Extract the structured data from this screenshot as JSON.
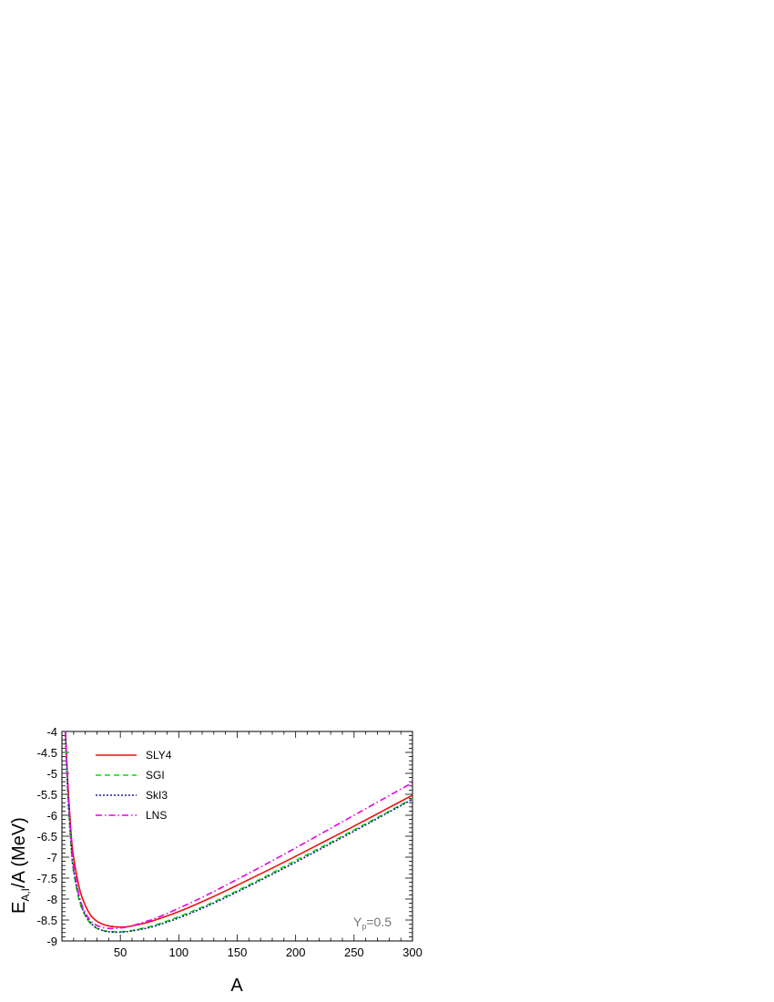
{
  "chart_data": {
    "type": "line",
    "xlabel": "A",
    "ylabel": {
      "main": "E",
      "sub": "A,I",
      "rest": "/A (MeV)"
    },
    "xlim": [
      0,
      300
    ],
    "ylim": [
      -9,
      -4
    ],
    "xticks": [
      50,
      100,
      150,
      200,
      250,
      300
    ],
    "yticks": [
      -4,
      -4.5,
      -5,
      -5.5,
      -6,
      -6.5,
      -7,
      -7.5,
      -8,
      -8.5,
      -9
    ],
    "legend_position": "top-left",
    "annotation": {
      "main": "Y",
      "sub": "p",
      "rest": "=0.5"
    },
    "series": [
      {
        "name": "SLY4",
        "color": "#ee1111",
        "dash": "",
        "x": [
          3,
          5,
          8,
          10,
          15,
          20,
          25,
          30,
          35,
          40,
          45,
          50,
          55,
          60,
          70,
          80,
          100,
          125,
          150,
          175,
          200,
          225,
          250,
          275,
          300
        ],
        "y": [
          -4.0,
          -5.2,
          -6.5,
          -7.0,
          -7.75,
          -8.15,
          -8.4,
          -8.53,
          -8.6,
          -8.64,
          -8.66,
          -8.67,
          -8.665,
          -8.64,
          -8.58,
          -8.5,
          -8.3,
          -8.0,
          -7.67,
          -7.33,
          -6.98,
          -6.62,
          -6.26,
          -5.89,
          -5.52
        ]
      },
      {
        "name": "SGI",
        "color": "#00dd00",
        "dash": "6,4",
        "x": [
          3,
          5,
          8,
          10,
          15,
          20,
          25,
          30,
          35,
          40,
          45,
          50,
          55,
          60,
          70,
          80,
          100,
          125,
          150,
          175,
          200,
          225,
          250,
          275,
          300
        ],
        "y": [
          -4.0,
          -5.5,
          -6.8,
          -7.35,
          -8.05,
          -8.4,
          -8.6,
          -8.7,
          -8.75,
          -8.77,
          -8.78,
          -8.78,
          -8.77,
          -8.75,
          -8.69,
          -8.62,
          -8.42,
          -8.13,
          -7.8,
          -7.45,
          -7.08,
          -6.72,
          -6.35,
          -5.98,
          -5.6
        ]
      },
      {
        "name": "SkI3",
        "color": "#1a1a9a",
        "dash": "2,2",
        "x": [
          3,
          5,
          8,
          10,
          15,
          20,
          25,
          30,
          35,
          40,
          45,
          50,
          55,
          60,
          70,
          80,
          100,
          125,
          150,
          175,
          200,
          225,
          250,
          275,
          300
        ],
        "y": [
          -4.0,
          -5.4,
          -6.75,
          -7.3,
          -8.0,
          -8.38,
          -8.58,
          -8.69,
          -8.75,
          -8.78,
          -8.79,
          -8.79,
          -8.78,
          -8.76,
          -8.71,
          -8.64,
          -8.45,
          -8.16,
          -7.83,
          -7.48,
          -7.12,
          -6.75,
          -6.38,
          -6.0,
          -5.62
        ]
      },
      {
        "name": "LNS",
        "color": "#e600e6",
        "dash": "7,3,1.5,3",
        "x": [
          3,
          5,
          8,
          10,
          15,
          20,
          25,
          30,
          35,
          40,
          45,
          50,
          55,
          60,
          70,
          80,
          100,
          125,
          150,
          175,
          200,
          225,
          250,
          275,
          300
        ],
        "y": [
          -4.0,
          -5.3,
          -6.6,
          -7.2,
          -7.95,
          -8.33,
          -8.53,
          -8.63,
          -8.68,
          -8.7,
          -8.7,
          -8.69,
          -8.67,
          -8.64,
          -8.55,
          -8.46,
          -8.22,
          -7.89,
          -7.53,
          -7.16,
          -6.78,
          -6.39,
          -6.0,
          -5.61,
          -5.22
        ]
      }
    ]
  }
}
